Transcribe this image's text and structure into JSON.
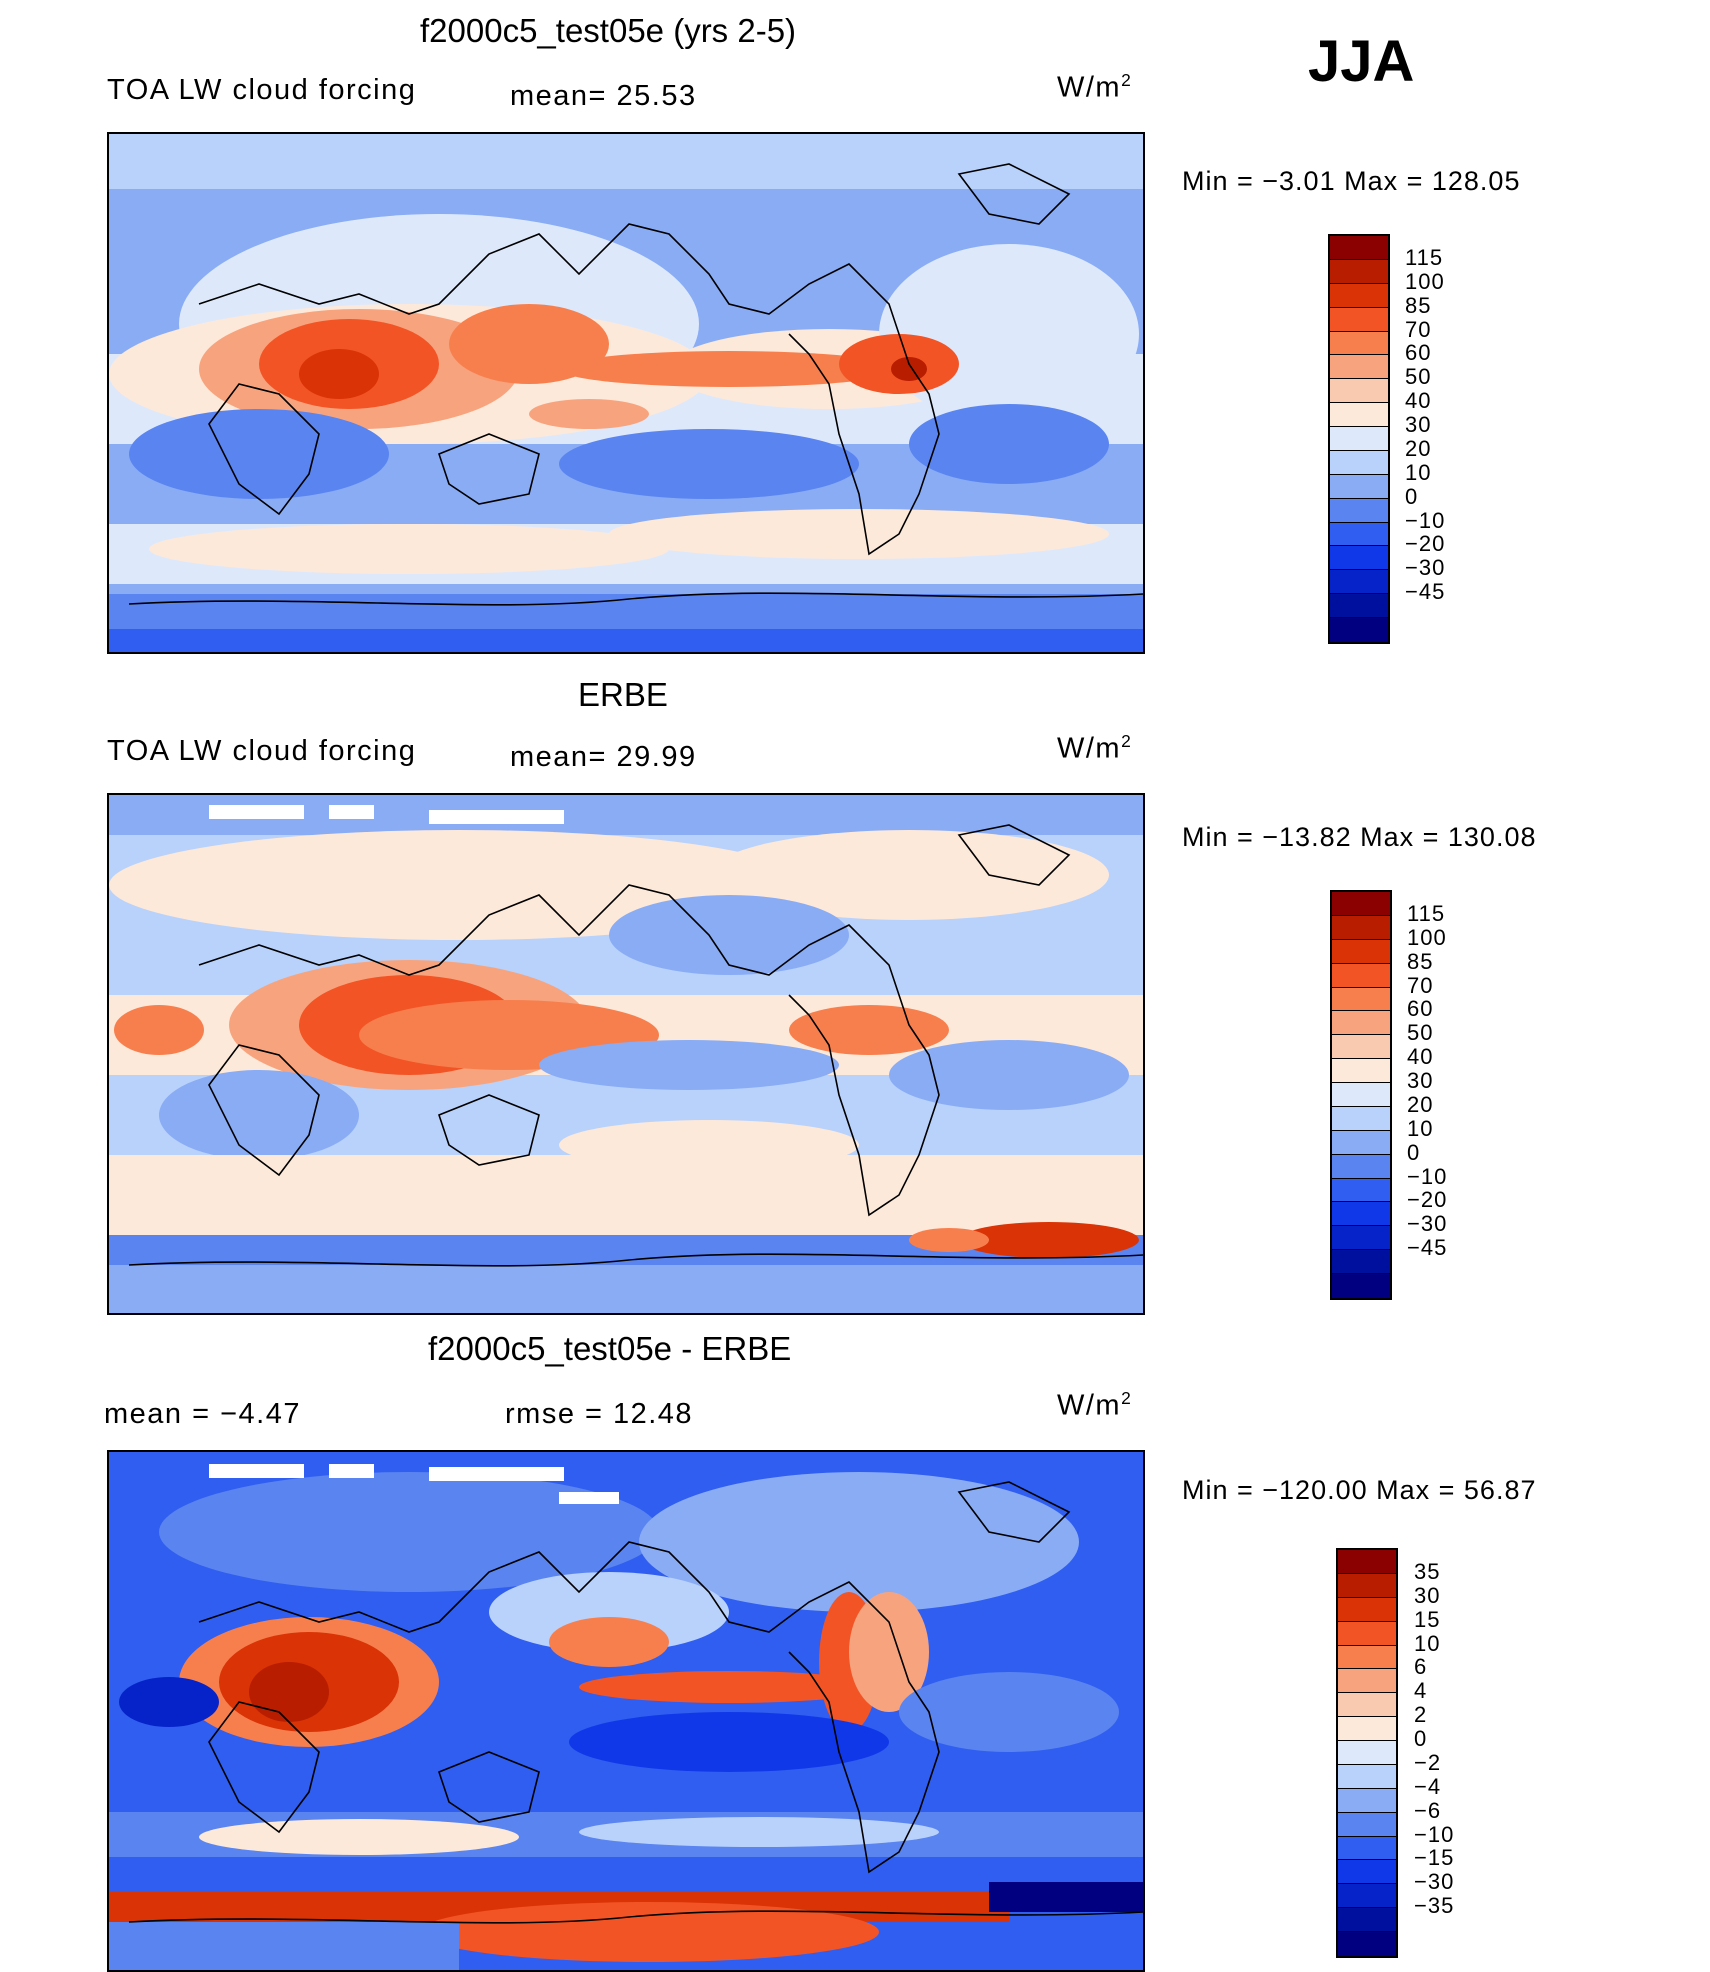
{
  "season": "JJA",
  "units": "W/m2",
  "units_base": "W/m",
  "units_sup": "2",
  "panels": [
    {
      "title": "f2000c5_test05e (yrs 2-5)",
      "left_label": "TOA LW cloud forcing",
      "center_label": "mean=   25.53",
      "minmax": "Min  =    −3.01  Max  =  128.05",
      "colorbar": {
        "colors": [
          "#8b0000",
          "#b81d00",
          "#d93306",
          "#f25425",
          "#f77f4d",
          "#f7a47e",
          "#facab0",
          "#fde9da",
          "#dde9fb",
          "#b9d2fb",
          "#89acf5",
          "#5a84f0",
          "#2f5ef0",
          "#1138e8",
          "#0623c9",
          "#00109e",
          "#000080"
        ],
        "labels": [
          "115",
          "100",
          "85",
          "70",
          "60",
          "50",
          "40",
          "30",
          "20",
          "10",
          "0",
          "−10",
          "−20",
          "−30",
          "−45"
        ]
      }
    },
    {
      "title": "ERBE",
      "left_label": "TOA LW cloud forcing",
      "center_label": "mean=   29.99",
      "minmax": "Min  = −13.82  Max  =  130.08",
      "colorbar": {
        "colors": [
          "#8b0000",
          "#b81d00",
          "#d93306",
          "#f25425",
          "#f77f4d",
          "#f7a47e",
          "#facab0",
          "#fde9da",
          "#dde9fb",
          "#b9d2fb",
          "#89acf5",
          "#5a84f0",
          "#2f5ef0",
          "#1138e8",
          "#0623c9",
          "#00109e",
          "#000080"
        ],
        "labels": [
          "115",
          "100",
          "85",
          "70",
          "60",
          "50",
          "40",
          "30",
          "20",
          "10",
          "0",
          "−10",
          "−20",
          "−30",
          "−45"
        ]
      }
    },
    {
      "title": "f2000c5_test05e - ERBE",
      "left_label": "mean  =    −4.47",
      "center_label": "rmse  =    12.48",
      "minmax": "Min  = −120.00  Max  =    56.87",
      "colorbar": {
        "colors": [
          "#8b0000",
          "#b81d00",
          "#d93306",
          "#f25425",
          "#f77f4d",
          "#f7a47e",
          "#facab0",
          "#fde9da",
          "#dde9fb",
          "#b9d2fb",
          "#89acf5",
          "#5a84f0",
          "#2f5ef0",
          "#1138e8",
          "#0623c9",
          "#00109e",
          "#000080"
        ],
        "labels": [
          "35",
          "30",
          "15",
          "10",
          "6",
          "4",
          "2",
          "0",
          "−2",
          "−4",
          "−6",
          "−10",
          "−15",
          "−30",
          "−35"
        ]
      }
    }
  ]
}
